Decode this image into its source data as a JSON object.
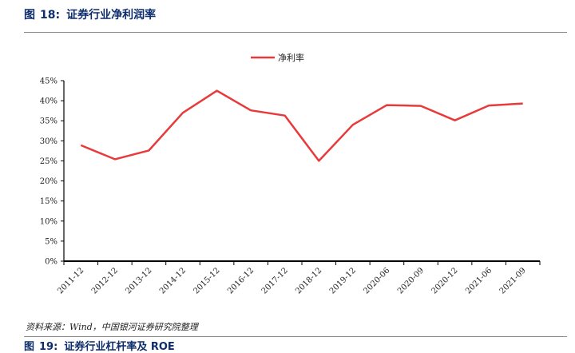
{
  "figure": {
    "label": "图",
    "number": "18:",
    "title": "证券行业净利润率"
  },
  "source": "资料来源：Wind，中国银河证券研究院整理",
  "next_figure": {
    "label": "图",
    "number": "19:",
    "title": "证券行业杠杆率及 ROE"
  },
  "chart_data": {
    "type": "line",
    "title": "",
    "xlabel": "",
    "ylabel": "",
    "categories": [
      "2011-12",
      "2012-12",
      "2013-12",
      "2014-12",
      "2015-12",
      "2016-12",
      "2017-12",
      "2018-12",
      "2019-12",
      "2020-06",
      "2020-09",
      "2020-12",
      "2021-06",
      "2021-09"
    ],
    "series": [
      {
        "name": "净利率",
        "color": "#e83a3a",
        "values": [
          28.9,
          25.4,
          27.6,
          37.0,
          42.5,
          37.6,
          36.3,
          25.0,
          34.0,
          38.9,
          38.7,
          35.1,
          38.8,
          39.3
        ]
      }
    ],
    "ylim": [
      0,
      45
    ],
    "yticks": [
      "0%",
      "5%",
      "10%",
      "15%",
      "20%",
      "25%",
      "30%",
      "35%",
      "40%",
      "45%"
    ],
    "legend_position": "top-center",
    "grid": false
  }
}
